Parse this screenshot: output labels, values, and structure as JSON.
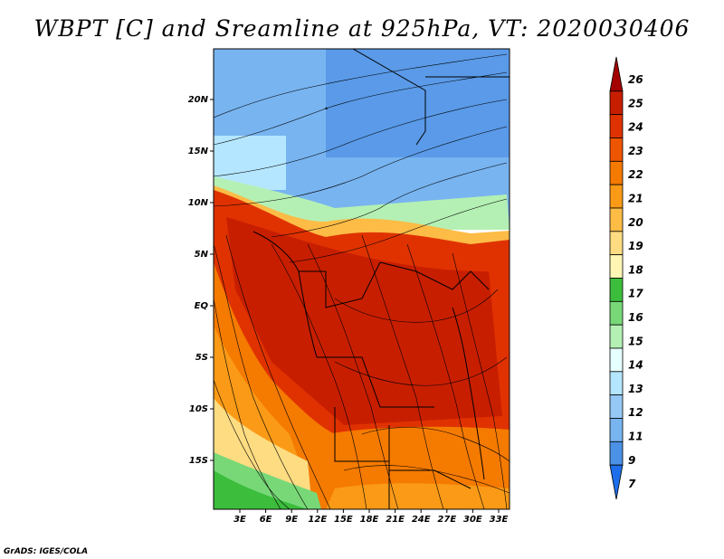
{
  "title": "WBPT [C] and Sreamline at 925hPa, VT: 2020030406",
  "credit": "GrADS: IGES/COLA",
  "map": {
    "variable": "Wet-bulb potential temperature (C) with streamlines",
    "level": "925hPa",
    "valid_time": "2020030406",
    "x_ticks": [
      "3E",
      "6E",
      "9E",
      "12E",
      "15E",
      "18E",
      "21E",
      "24E",
      "27E",
      "30E",
      "33E"
    ],
    "y_ticks": [
      "20N",
      "15N",
      "10N",
      "5N",
      "EQ",
      "5S",
      "10S",
      "15S"
    ],
    "lon_range": [
      0,
      35
    ],
    "lat_range": [
      -20,
      25
    ]
  },
  "colorbar": {
    "labels": [
      "26",
      "25",
      "24",
      "23",
      "22",
      "21",
      "20",
      "19",
      "18",
      "17",
      "16",
      "15",
      "14",
      "13",
      "12",
      "11",
      "9",
      "7"
    ],
    "colors": [
      "#a50000",
      "#c81e00",
      "#e03200",
      "#ee5500",
      "#f57a00",
      "#fa9a16",
      "#fcbc46",
      "#fedc82",
      "#fff6b4",
      "#3cbe3c",
      "#78d878",
      "#b4f0b4",
      "#e6ffff",
      "#b4e6ff",
      "#96c8f5",
      "#78b4f0",
      "#4b91e6",
      "#1e6eeb"
    ]
  }
}
